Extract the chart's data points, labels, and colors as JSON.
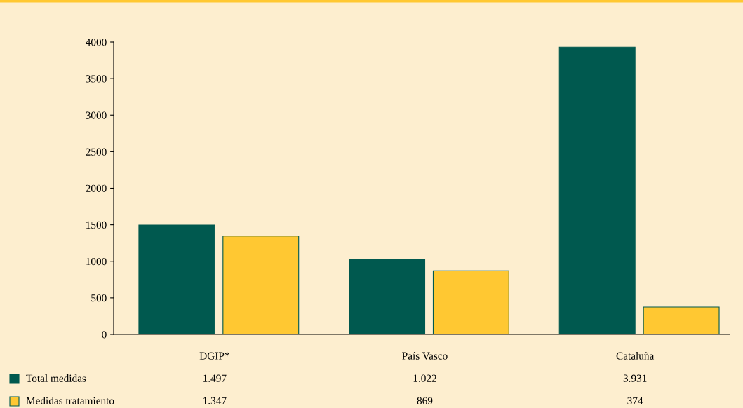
{
  "chart_data": {
    "type": "bar",
    "categories": [
      "DGIP*",
      "País Vasco",
      "Cataluña"
    ],
    "series": [
      {
        "name": "Total medidas",
        "color": "#00594f",
        "values": [
          1497,
          1022,
          3931
        ],
        "value_labels": [
          "1.497",
          "1.022",
          "3.931"
        ]
      },
      {
        "name": "Medidas tratamiento",
        "color": "#ffc832",
        "values": [
          1347,
          869,
          374
        ],
        "value_labels": [
          "1.347",
          "869",
          "374"
        ]
      }
    ],
    "ylim": [
      0,
      4000
    ],
    "yticks": [
      0,
      500,
      1000,
      1500,
      2000,
      2500,
      3000,
      3500,
      4000
    ],
    "grid": false,
    "legend": "bottom left"
  }
}
